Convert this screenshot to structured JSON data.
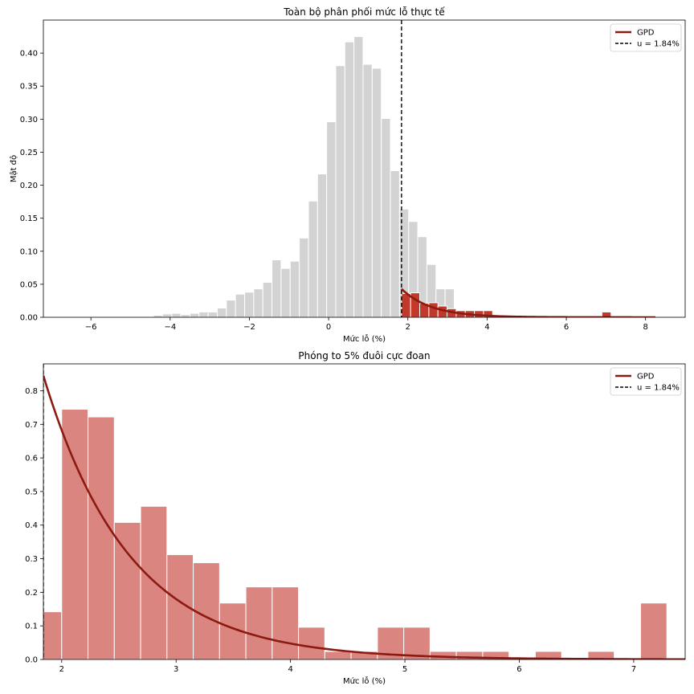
{
  "chart_data": [
    {
      "type": "bar",
      "title": "Toàn bộ phân phối mức lỗ thực tế",
      "xlabel": "Mức lỗ (%)",
      "ylabel": "Mật độ",
      "xlim": [
        -7.2,
        9.0
      ],
      "ylim": [
        0,
        0.45
      ],
      "xticks": [
        -6,
        -4,
        -2,
        0,
        2,
        4,
        6,
        8
      ],
      "yticks": [
        0.0,
        0.05,
        0.1,
        0.15,
        0.2,
        0.25,
        0.3,
        0.35,
        0.4
      ],
      "tick_decimals": 2,
      "threshold": 1.84,
      "body_color": "#d3d3d3",
      "tail_color": "#c0392b",
      "fit_color": "#8b1a10",
      "bins": [
        {
          "x0": -6.95,
          "x1": -6.72,
          "v": 0.0
        },
        {
          "x0": -6.72,
          "x1": -6.49,
          "v": 0.0
        },
        {
          "x0": -6.49,
          "x1": -6.26,
          "v": 0.0
        },
        {
          "x0": -6.26,
          "x1": -6.03,
          "v": 0.0
        },
        {
          "x0": -6.03,
          "x1": -5.8,
          "v": 0.0
        },
        {
          "x0": -5.8,
          "x1": -5.57,
          "v": 0.0
        },
        {
          "x0": -5.57,
          "x1": -5.34,
          "v": 0.001
        },
        {
          "x0": -5.34,
          "x1": -5.11,
          "v": 0.0
        },
        {
          "x0": -5.11,
          "x1": -4.88,
          "v": 0.0
        },
        {
          "x0": -4.88,
          "x1": -4.65,
          "v": 0.001
        },
        {
          "x0": -4.65,
          "x1": -4.42,
          "v": 0.001
        },
        {
          "x0": -4.42,
          "x1": -4.19,
          "v": 0.003
        },
        {
          "x0": -4.19,
          "x1": -3.96,
          "v": 0.005
        },
        {
          "x0": -3.96,
          "x1": -3.73,
          "v": 0.006
        },
        {
          "x0": -3.73,
          "x1": -3.5,
          "v": 0.004
        },
        {
          "x0": -3.5,
          "x1": -3.27,
          "v": 0.006
        },
        {
          "x0": -3.27,
          "x1": -3.04,
          "v": 0.008
        },
        {
          "x0": -3.04,
          "x1": -2.81,
          "v": 0.008
        },
        {
          "x0": -2.81,
          "x1": -2.58,
          "v": 0.014
        },
        {
          "x0": -2.58,
          "x1": -2.35,
          "v": 0.026
        },
        {
          "x0": -2.35,
          "x1": -2.12,
          "v": 0.035
        },
        {
          "x0": -2.12,
          "x1": -1.89,
          "v": 0.038
        },
        {
          "x0": -1.89,
          "x1": -1.66,
          "v": 0.043
        },
        {
          "x0": -1.66,
          "x1": -1.43,
          "v": 0.053
        },
        {
          "x0": -1.43,
          "x1": -1.2,
          "v": 0.087
        },
        {
          "x0": -1.2,
          "x1": -0.97,
          "v": 0.074
        },
        {
          "x0": -0.97,
          "x1": -0.74,
          "v": 0.085
        },
        {
          "x0": -0.74,
          "x1": -0.51,
          "v": 0.12
        },
        {
          "x0": -0.51,
          "x1": -0.28,
          "v": 0.176
        },
        {
          "x0": -0.28,
          "x1": -0.05,
          "v": 0.217
        },
        {
          "x0": -0.05,
          "x1": 0.18,
          "v": 0.296
        },
        {
          "x0": 0.18,
          "x1": 0.41,
          "v": 0.381
        },
        {
          "x0": 0.41,
          "x1": 0.64,
          "v": 0.417
        },
        {
          "x0": 0.64,
          "x1": 0.87,
          "v": 0.425
        },
        {
          "x0": 0.87,
          "x1": 1.1,
          "v": 0.383
        },
        {
          "x0": 1.1,
          "x1": 1.33,
          "v": 0.377
        },
        {
          "x0": 1.33,
          "x1": 1.56,
          "v": 0.301
        },
        {
          "x0": 1.56,
          "x1": 1.79,
          "v": 0.222
        },
        {
          "x0": 1.79,
          "x1": 2.02,
          "v": 0.164
        },
        {
          "x0": 2.02,
          "x1": 2.25,
          "v": 0.145
        },
        {
          "x0": 2.25,
          "x1": 2.48,
          "v": 0.122
        },
        {
          "x0": 2.48,
          "x1": 2.71,
          "v": 0.08
        },
        {
          "x0": 2.71,
          "x1": 2.94,
          "v": 0.043
        },
        {
          "x0": 2.94,
          "x1": 3.17,
          "v": 0.043
        }
      ],
      "tail_bins": [
        {
          "x0": 1.84,
          "x1": 2.07,
          "v": 0.036
        },
        {
          "x0": 2.07,
          "x1": 2.3,
          "v": 0.037
        },
        {
          "x0": 2.3,
          "x1": 2.53,
          "v": 0.021
        },
        {
          "x0": 2.53,
          "x1": 2.76,
          "v": 0.022
        },
        {
          "x0": 2.76,
          "x1": 2.99,
          "v": 0.017
        },
        {
          "x0": 2.99,
          "x1": 3.22,
          "v": 0.013
        },
        {
          "x0": 3.22,
          "x1": 3.45,
          "v": 0.01
        },
        {
          "x0": 3.45,
          "x1": 3.68,
          "v": 0.01
        },
        {
          "x0": 3.68,
          "x1": 3.91,
          "v": 0.01
        },
        {
          "x0": 3.91,
          "x1": 4.14,
          "v": 0.01
        },
        {
          "x0": 4.14,
          "x1": 4.37,
          "v": 0.002
        },
        {
          "x0": 4.37,
          "x1": 4.6,
          "v": 0.0
        },
        {
          "x0": 4.6,
          "x1": 4.83,
          "v": 0.002
        },
        {
          "x0": 4.83,
          "x1": 5.06,
          "v": 0.002
        },
        {
          "x0": 5.06,
          "x1": 5.29,
          "v": 0.001
        },
        {
          "x0": 5.29,
          "x1": 5.52,
          "v": 0.001
        },
        {
          "x0": 5.52,
          "x1": 5.75,
          "v": 0.001
        },
        {
          "x0": 5.75,
          "x1": 5.98,
          "v": 0.0
        },
        {
          "x0": 5.98,
          "x1": 6.21,
          "v": 0.001
        },
        {
          "x0": 6.21,
          "x1": 6.44,
          "v": 0.0
        },
        {
          "x0": 6.44,
          "x1": 6.67,
          "v": 0.001
        },
        {
          "x0": 6.67,
          "x1": 6.9,
          "v": 0.0
        },
        {
          "x0": 6.9,
          "x1": 7.13,
          "v": 0.008
        },
        {
          "x0": 7.13,
          "x1": 7.36,
          "v": 0.0
        }
      ],
      "gpd_curve": {
        "x_start": 1.84,
        "x_end": 8.25,
        "peak": 0.043,
        "decay": 0.75
      },
      "legend": [
        {
          "label": "GPD",
          "style": "solid"
        },
        {
          "label": "u = 1.84%",
          "style": "dashed"
        }
      ]
    },
    {
      "type": "bar",
      "title": "Phóng to 5% đuôi cực đoan",
      "xlabel": "Mức lỗ (%)",
      "ylabel": "",
      "xlim": [
        1.84,
        7.45
      ],
      "ylim": [
        0,
        0.88
      ],
      "xticks": [
        2,
        3,
        4,
        5,
        6,
        7
      ],
      "yticks": [
        0.0,
        0.1,
        0.2,
        0.3,
        0.4,
        0.5,
        0.6,
        0.7,
        0.8
      ],
      "tick_decimals": 1,
      "threshold": 1.84,
      "tail_color": "#db8580",
      "fit_color": "#8b1a10",
      "bins": [
        {
          "x0": 1.77,
          "x1": 2.0,
          "v": 0.142
        },
        {
          "x0": 2.0,
          "x1": 2.23,
          "v": 0.745
        },
        {
          "x0": 2.23,
          "x1": 2.46,
          "v": 0.722
        },
        {
          "x0": 2.46,
          "x1": 2.69,
          "v": 0.408
        },
        {
          "x0": 2.69,
          "x1": 2.92,
          "v": 0.456
        },
        {
          "x0": 2.92,
          "x1": 3.15,
          "v": 0.312
        },
        {
          "x0": 3.15,
          "x1": 3.38,
          "v": 0.288
        },
        {
          "x0": 3.38,
          "x1": 3.61,
          "v": 0.168
        },
        {
          "x0": 3.61,
          "x1": 3.84,
          "v": 0.216
        },
        {
          "x0": 3.84,
          "x1": 4.07,
          "v": 0.216
        },
        {
          "x0": 4.07,
          "x1": 4.3,
          "v": 0.096
        },
        {
          "x0": 4.3,
          "x1": 4.53,
          "v": 0.024
        },
        {
          "x0": 4.53,
          "x1": 4.76,
          "v": 0.024
        },
        {
          "x0": 4.76,
          "x1": 4.99,
          "v": 0.096
        },
        {
          "x0": 4.99,
          "x1": 5.22,
          "v": 0.096
        },
        {
          "x0": 5.22,
          "x1": 5.45,
          "v": 0.024
        },
        {
          "x0": 5.45,
          "x1": 5.68,
          "v": 0.024
        },
        {
          "x0": 5.68,
          "x1": 5.91,
          "v": 0.024
        },
        {
          "x0": 5.91,
          "x1": 6.14,
          "v": 0.0
        },
        {
          "x0": 6.14,
          "x1": 6.37,
          "v": 0.024
        },
        {
          "x0": 6.37,
          "x1": 6.6,
          "v": 0.0
        },
        {
          "x0": 6.6,
          "x1": 6.83,
          "v": 0.024
        },
        {
          "x0": 6.83,
          "x1": 7.06,
          "v": 0.0
        },
        {
          "x0": 7.06,
          "x1": 7.29,
          "v": 0.168
        }
      ],
      "gpd_curve": {
        "x_start": 1.84,
        "x_end": 7.45,
        "peak": 0.845,
        "decay": 0.75
      },
      "legend": [
        {
          "label": "GPD",
          "style": "solid"
        },
        {
          "label": "u = 1.84%",
          "style": "dashed"
        }
      ]
    }
  ]
}
